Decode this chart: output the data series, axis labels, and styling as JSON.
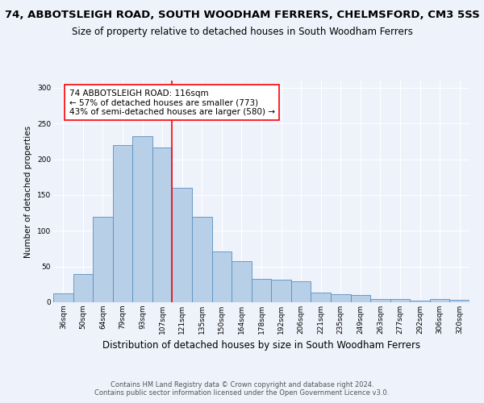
{
  "title1": "74, ABBOTSLEIGH ROAD, SOUTH WOODHAM FERRERS, CHELMSFORD, CM3 5SS",
  "title2": "Size of property relative to detached houses in South Woodham Ferrers",
  "xlabel": "Distribution of detached houses by size in South Woodham Ferrers",
  "ylabel": "Number of detached properties",
  "categories": [
    "36sqm",
    "50sqm",
    "64sqm",
    "79sqm",
    "93sqm",
    "107sqm",
    "121sqm",
    "135sqm",
    "150sqm",
    "164sqm",
    "178sqm",
    "192sqm",
    "206sqm",
    "221sqm",
    "235sqm",
    "249sqm",
    "263sqm",
    "277sqm",
    "292sqm",
    "306sqm",
    "320sqm"
  ],
  "values": [
    12,
    40,
    119,
    220,
    232,
    217,
    160,
    119,
    71,
    58,
    33,
    32,
    29,
    14,
    11,
    10,
    5,
    4,
    2,
    4,
    3
  ],
  "bar_color": "#b8cfe8",
  "bar_edge_color": "#5a8fc0",
  "vline_color": "red",
  "annotation_text": "74 ABBOTSLEIGH ROAD: 116sqm\n← 57% of detached houses are smaller (773)\n43% of semi-detached houses are larger (580) →",
  "annotation_box_color": "white",
  "annotation_box_edge": "red",
  "ylim": [
    0,
    310
  ],
  "yticks": [
    0,
    50,
    100,
    150,
    200,
    250,
    300
  ],
  "footer1": "Contains HM Land Registry data © Crown copyright and database right 2024.",
  "footer2": "Contains public sector information licensed under the Open Government Licence v3.0.",
  "bg_color": "#eef2fb",
  "grid_color": "#ffffff",
  "title1_fontsize": 9.5,
  "title2_fontsize": 8.5,
  "xlabel_fontsize": 8.5,
  "ylabel_fontsize": 7.5,
  "tick_fontsize": 6.5,
  "annotation_fontsize": 7.5,
  "footer_fontsize": 6
}
